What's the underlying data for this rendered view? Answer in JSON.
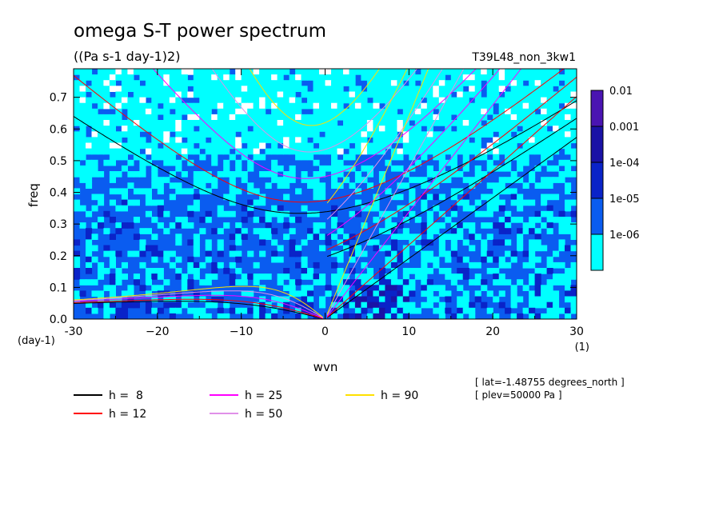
{
  "chart_data": {
    "type": "contour",
    "title": "omega S-T power spectrum",
    "subtitle": "((Pa s-1 day-1)2)",
    "run_label": "T39L48_non_3kw1",
    "xlabel": "wvn",
    "ylabel": "freq",
    "x_unit": "(1)",
    "y_unit": "(day-1)",
    "xlim": [
      -30,
      30
    ],
    "ylim": [
      0,
      0.79
    ],
    "x_ticks": [
      -30,
      -20,
      -10,
      0,
      10,
      20,
      30
    ],
    "x_tick_labels": [
      "-30",
      "−20",
      "−10",
      "0",
      "10",
      "20",
      "30"
    ],
    "y_ticks": [
      0,
      0.1,
      0.2,
      0.3,
      0.4,
      0.5,
      0.6,
      0.7
    ],
    "y_tick_labels": [
      "0.0",
      "0.1",
      "0.2",
      "0.3",
      "0.4",
      "0.5",
      "0.6",
      "0.7"
    ],
    "colorbar": {
      "levels": [
        {
          "label": "1e-06",
          "color": "#00ffff"
        },
        {
          "label": "1e-05",
          "color": "#0a5cf0"
        },
        {
          "label": "1e-04",
          "color": "#0a23c8"
        },
        {
          "label": "0.001",
          "color": "#1a12a6"
        },
        {
          "label": "0.01",
          "color": "#4a14b2"
        }
      ],
      "above_top_color": "#4a14b2"
    },
    "dispersion_curves": [
      {
        "name": "h =  8",
        "h": 8,
        "color": "#000000"
      },
      {
        "name": "h = 12",
        "h": 12,
        "color": "#ff0000"
      },
      {
        "name": "h = 25",
        "h": 25,
        "color": "#ff00ff"
      },
      {
        "name": "h = 50",
        "h": 50,
        "color": "#e090e8"
      },
      {
        "name": "h = 90",
        "h": 90,
        "color": "#ffe000"
      }
    ],
    "annotations": [
      "[ lat=-1.48755 degrees_north ]",
      "[ plev=50000 Pa ]"
    ]
  }
}
